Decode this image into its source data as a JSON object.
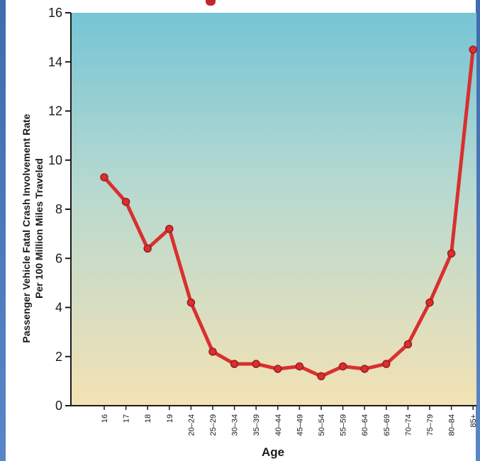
{
  "chart_data": {
    "type": "line",
    "title": "",
    "xlabel": "Age",
    "ylabel_line1": "Passenger Vehicle Fatal Crash Involvement Rate",
    "ylabel_line2": "Per 100 Million Miles Traveled",
    "ylim": [
      0,
      16
    ],
    "yticks": [
      0,
      2,
      4,
      6,
      8,
      10,
      12,
      14,
      16
    ],
    "grid": false,
    "background_top_color": "#76c5d5",
    "background_bottom_color": "#f3e2b4",
    "line_color": "#d8302f",
    "categories": [
      "16",
      "17",
      "18",
      "19",
      "20–24",
      "25–29",
      "30–34",
      "35–39",
      "40–44",
      "45–49",
      "50–54",
      "55–59",
      "60–64",
      "65–69",
      "70–74",
      "75–79",
      "80–84",
      "85+"
    ],
    "values": [
      9.3,
      8.3,
      6.4,
      7.2,
      4.2,
      2.2,
      1.7,
      1.7,
      1.5,
      1.6,
      1.2,
      1.6,
      1.5,
      1.7,
      2.5,
      4.2,
      6.2,
      14.5
    ]
  }
}
